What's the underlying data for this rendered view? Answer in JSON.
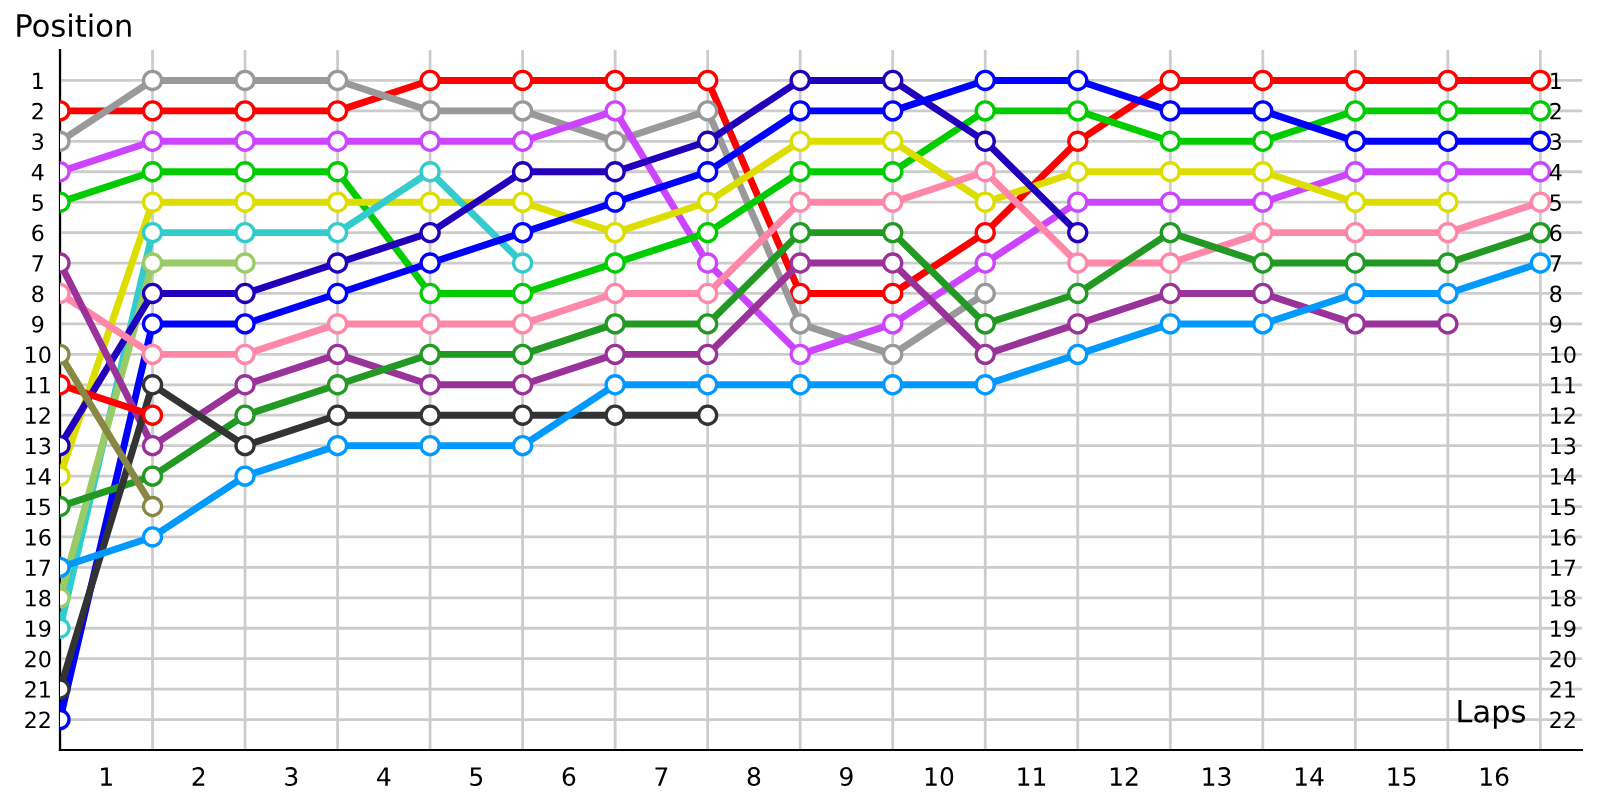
{
  "chart_data": {
    "type": "line",
    "ylabel": "Position",
    "xlabel": "Laps",
    "x": [
      0,
      1,
      2,
      3,
      4,
      5,
      6,
      7,
      8,
      9,
      10,
      11,
      12,
      13,
      14,
      15,
      16
    ],
    "xlim": [
      0,
      16.45
    ],
    "xticks": [
      {
        "value": 0,
        "label": null
      },
      {
        "value": 1,
        "label": null
      },
      {
        "value": 2,
        "label": null
      },
      {
        "value": 3,
        "label": null
      },
      {
        "value": 4,
        "label": null
      },
      {
        "value": 5,
        "label": null
      },
      {
        "value": 6,
        "label": null
      },
      {
        "value": 7,
        "label": null
      },
      {
        "value": 8,
        "label": null
      },
      {
        "value": 9,
        "label": null
      },
      {
        "value": 10,
        "label": null
      },
      {
        "value": 11,
        "label": null
      },
      {
        "value": 12,
        "label": null
      },
      {
        "value": 13,
        "label": null
      },
      {
        "value": 14,
        "label": null
      },
      {
        "value": 15,
        "label": null
      },
      {
        "value": 16,
        "label": null
      },
      {
        "value": 0.5,
        "label": "1"
      },
      {
        "value": 1.5,
        "label": "2"
      },
      {
        "value": 2.5,
        "label": "3"
      },
      {
        "value": 3.5,
        "label": "4"
      },
      {
        "value": 4.5,
        "label": "5"
      },
      {
        "value": 5.5,
        "label": "6"
      },
      {
        "value": 6.5,
        "label": "7"
      },
      {
        "value": 7.5,
        "label": "8"
      },
      {
        "value": 8.5,
        "label": "9"
      },
      {
        "value": 9.5,
        "label": "10"
      },
      {
        "value": 10.5,
        "label": "11"
      },
      {
        "value": 11.5,
        "label": "12"
      },
      {
        "value": 12.5,
        "label": "13"
      },
      {
        "value": 13.5,
        "label": "14"
      },
      {
        "value": 14.5,
        "label": "15"
      },
      {
        "value": 15.5,
        "label": "16"
      }
    ],
    "ylim": [
      23,
      0
    ],
    "yticks": [
      1,
      2,
      3,
      4,
      5,
      6,
      7,
      8,
      9,
      10,
      11,
      12,
      13,
      14,
      15,
      16,
      17,
      18,
      19,
      20,
      21,
      22
    ],
    "y2lim": [
      23,
      0
    ],
    "y2ticks": [
      1,
      2,
      3,
      4,
      5,
      6,
      7,
      8,
      9,
      10,
      11,
      12,
      13,
      14,
      15,
      16,
      17,
      18,
      19,
      20,
      21,
      22
    ],
    "grid": true,
    "marker": "circle",
    "line_style": "solid",
    "series": [
      {
        "color": "#ff0000",
        "values": [
          2,
          2,
          2,
          2,
          1,
          1,
          1,
          1,
          8,
          8,
          6,
          3,
          1,
          1,
          1,
          1,
          1
        ]
      },
      {
        "color": "#999999",
        "values": [
          3,
          1,
          1,
          1,
          2,
          2,
          3,
          2,
          9,
          10,
          8,
          null,
          null,
          null,
          null,
          null,
          null
        ]
      },
      {
        "color": "#cc44ff",
        "values": [
          4,
          3,
          3,
          3,
          3,
          3,
          2,
          7,
          10,
          9,
          7,
          5,
          5,
          5,
          4,
          4,
          4
        ]
      },
      {
        "color": "#00cc00",
        "values": [
          5,
          4,
          4,
          4,
          8,
          8,
          7,
          6,
          4,
          4,
          2,
          2,
          3,
          3,
          2,
          2,
          2
        ]
      },
      {
        "color": "#dddd00",
        "values": [
          14,
          5,
          5,
          5,
          5,
          5,
          6,
          5,
          3,
          3,
          5,
          4,
          4,
          4,
          5,
          5,
          null
        ]
      },
      {
        "color": "#33cccc",
        "values": [
          19,
          6,
          6,
          6,
          4,
          7,
          null,
          null,
          null,
          null,
          null,
          null,
          null,
          null,
          null,
          null,
          null
        ]
      },
      {
        "color": "#99cc66",
        "values": [
          18,
          7,
          7,
          null,
          null,
          null,
          null,
          null,
          null,
          null,
          null,
          null,
          null,
          null,
          null,
          null,
          null
        ]
      },
      {
        "color": "#2200bb",
        "values": [
          13,
          8,
          8,
          7,
          6,
          4,
          4,
          3,
          1,
          1,
          3,
          6,
          null,
          null,
          null,
          null,
          null
        ]
      },
      {
        "color": "#0000ff",
        "values": [
          22,
          9,
          9,
          8,
          7,
          6,
          5,
          4,
          2,
          2,
          1,
          1,
          2,
          2,
          3,
          3,
          3
        ]
      },
      {
        "color": "#ff88aa",
        "values": [
          8,
          10,
          10,
          9,
          9,
          9,
          8,
          8,
          5,
          5,
          4,
          7,
          7,
          6,
          6,
          6,
          5
        ]
      },
      {
        "color": "#993399",
        "values": [
          7,
          13,
          11,
          10,
          11,
          11,
          10,
          10,
          7,
          7,
          10,
          9,
          8,
          8,
          9,
          9,
          null
        ]
      },
      {
        "color": "#229922",
        "values": [
          15,
          14,
          12,
          11,
          10,
          10,
          9,
          9,
          6,
          6,
          9,
          8,
          6,
          7,
          7,
          7,
          6
        ]
      },
      {
        "color": "#333333",
        "values": [
          21,
          11,
          13,
          12,
          12,
          12,
          12,
          12,
          null,
          null,
          null,
          null,
          null,
          null,
          null,
          null,
          null
        ]
      },
      {
        "color": "#0099ff",
        "values": [
          17,
          16,
          14,
          13,
          13,
          13,
          11,
          11,
          11,
          11,
          11,
          10,
          9,
          9,
          8,
          8,
          7
        ]
      },
      {
        "color": "#ff0000",
        "values": [
          11,
          12,
          null,
          null,
          null,
          null,
          null,
          null,
          null,
          null,
          null,
          null,
          null,
          null,
          null,
          null,
          null
        ]
      },
      {
        "color": "#888844",
        "values": [
          10,
          15,
          null,
          null,
          null,
          null,
          null,
          null,
          null,
          null,
          null,
          null,
          null,
          null,
          null,
          null,
          null
        ]
      }
    ]
  }
}
